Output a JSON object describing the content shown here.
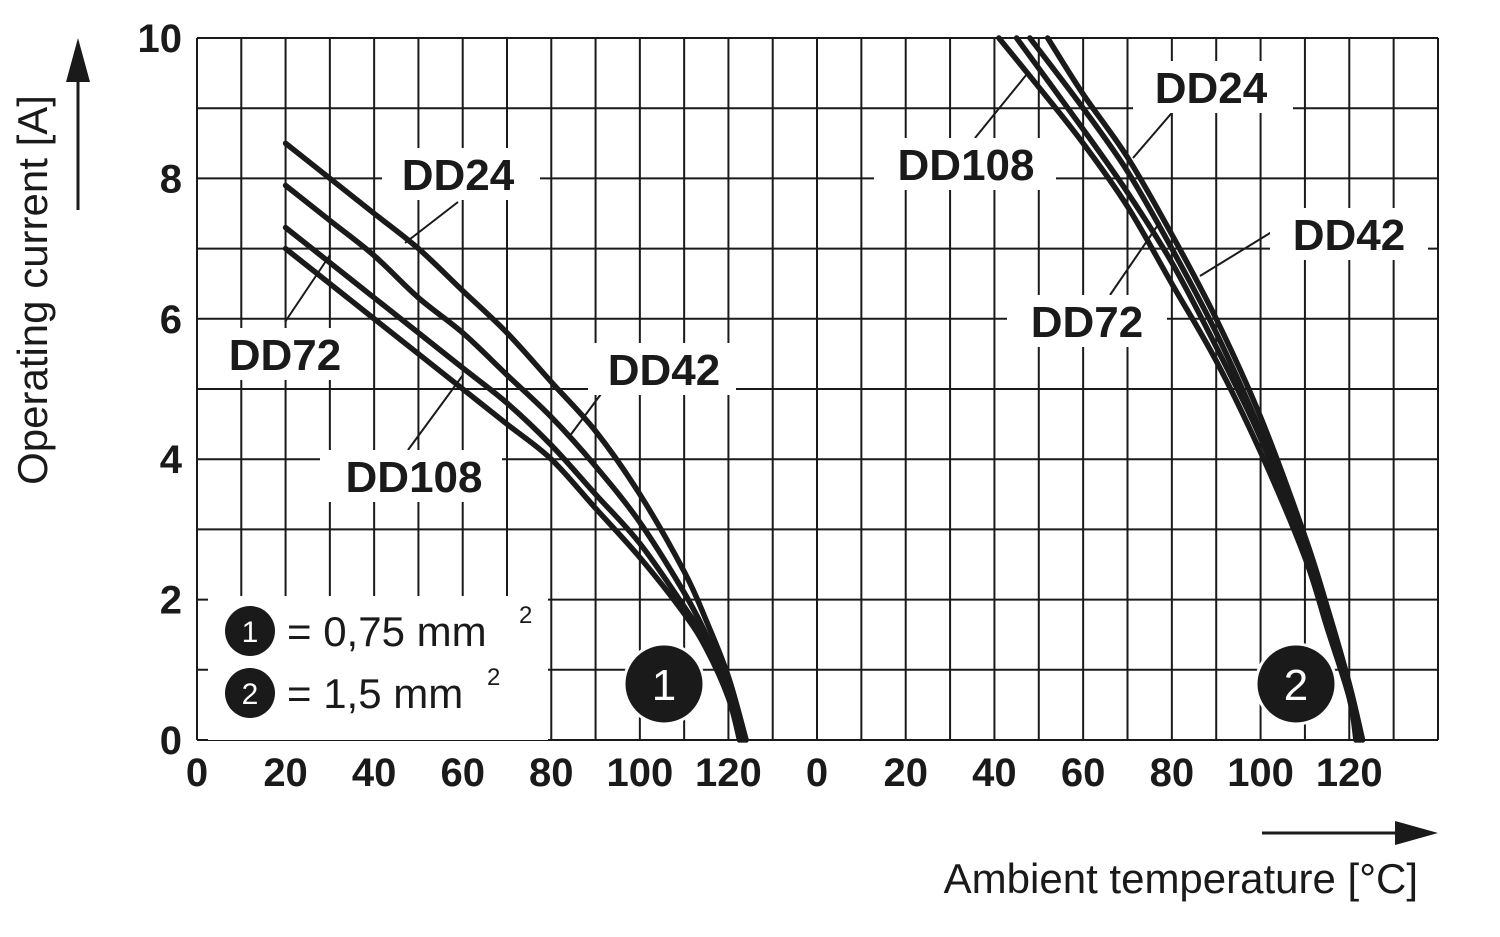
{
  "chart_data": {
    "type": "line",
    "xlabel": "Ambient temperature [°C]",
    "ylabel": "Operating current [A]",
    "ylim": [
      0,
      10
    ],
    "yticks": [
      "0",
      "2",
      "4",
      "6",
      "8",
      "10"
    ],
    "grid": true,
    "panels": [
      {
        "id": "1",
        "marker": "1",
        "xlim": [
          0,
          140
        ],
        "xticks": [
          "0",
          "20",
          "40",
          "60",
          "80",
          "100",
          "120"
        ],
        "series": [
          {
            "name": "DD24",
            "x": [
              20,
              30,
              40,
              50,
              60,
              70,
              80,
              90,
              100,
              110,
              115,
              120,
              124
            ],
            "y": [
              8.5,
              8.0,
              7.5,
              7.0,
              6.4,
              5.8,
              5.1,
              4.4,
              3.5,
              2.4,
              1.7,
              0.9,
              0
            ]
          },
          {
            "name": "DD42",
            "x": [
              20,
              30,
              40,
              50,
              60,
              70,
              80,
              90,
              100,
              110,
              115,
              120,
              123.5
            ],
            "y": [
              7.9,
              7.4,
              6.9,
              6.3,
              5.8,
              5.2,
              4.6,
              3.9,
              3.1,
              2.1,
              1.5,
              0.8,
              0
            ]
          },
          {
            "name": "DD72",
            "x": [
              20,
              30,
              40,
              50,
              60,
              70,
              80,
              90,
              100,
              110,
              115,
              120,
              123
            ],
            "y": [
              7.3,
              6.8,
              6.3,
              5.8,
              5.3,
              4.8,
              4.2,
              3.5,
              2.8,
              1.9,
              1.4,
              0.7,
              0
            ]
          },
          {
            "name": "DD108",
            "x": [
              20,
              30,
              40,
              50,
              60,
              70,
              80,
              90,
              100,
              110,
              115,
              120,
              122.5
            ],
            "y": [
              7.0,
              6.5,
              6.0,
              5.5,
              5.0,
              4.5,
              4.0,
              3.3,
              2.6,
              1.8,
              1.3,
              0.6,
              0
            ]
          }
        ]
      },
      {
        "id": "2",
        "marker": "2",
        "xlim": [
          0,
          140
        ],
        "xticks": [
          "0",
          "20",
          "40",
          "60",
          "80",
          "100",
          "120"
        ],
        "series": [
          {
            "name": "DD24",
            "x": [
              52,
              60,
              70,
              80,
              90,
              100,
              110,
              115,
              120,
              123
            ],
            "y": [
              10,
              9.2,
              8.3,
              7.2,
              6.0,
              4.6,
              2.9,
              1.9,
              0.8,
              0
            ]
          },
          {
            "name": "DD42",
            "x": [
              48,
              60,
              70,
              80,
              90,
              100,
              110,
              115,
              120,
              122.5
            ],
            "y": [
              10,
              9.0,
              8.1,
              7.0,
              5.8,
              4.4,
              2.8,
              1.8,
              0.7,
              0
            ]
          },
          {
            "name": "DD72",
            "x": [
              45,
              60,
              70,
              80,
              90,
              100,
              110,
              115,
              120,
              122
            ],
            "y": [
              10,
              8.7,
              7.8,
              6.8,
              5.6,
              4.3,
              2.7,
              1.7,
              0.7,
              0
            ]
          },
          {
            "name": "DD108",
            "x": [
              41,
              50,
              60,
              70,
              80,
              90,
              100,
              110,
              115,
              120,
              121.5
            ],
            "y": [
              10,
              9.3,
              8.5,
              7.6,
              6.5,
              5.4,
              4.1,
              2.6,
              1.6,
              0.6,
              0
            ]
          }
        ]
      }
    ],
    "legend": [
      {
        "marker": "1",
        "text": "= 0,75 mm",
        "sup": "2"
      },
      {
        "marker": "2",
        "text": "= 1,5 mm",
        "sup": "2"
      }
    ]
  }
}
